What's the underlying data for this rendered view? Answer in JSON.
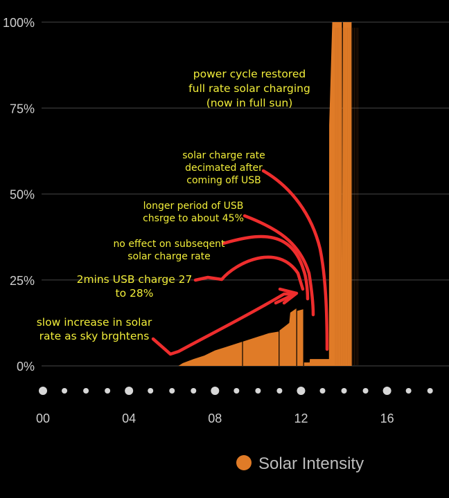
{
  "chart_data": {
    "type": "area",
    "y_ticks": [
      "0%",
      "25%",
      "50%",
      "75%",
      "100%"
    ],
    "ylim": [
      0,
      100
    ],
    "x_ticks": [
      "00",
      "04",
      "08",
      "12",
      "16"
    ],
    "xlim": [
      0,
      18.3
    ],
    "series": [
      {
        "name": "Solar Intensity",
        "color": "#e07b27",
        "points": [
          [
            6.3,
            0
          ],
          [
            6.5,
            0.8
          ],
          [
            7.0,
            2
          ],
          [
            7.5,
            3
          ],
          [
            8.0,
            4.5
          ],
          [
            8.5,
            5.5
          ],
          [
            9.0,
            6.5
          ],
          [
            9.5,
            7.5
          ],
          [
            10.0,
            8.5
          ],
          [
            10.5,
            9.5
          ],
          [
            10.98,
            10
          ],
          [
            11.0,
            10.3
          ],
          [
            11.25,
            11.5
          ],
          [
            11.45,
            12.5
          ],
          [
            11.5,
            15.5
          ],
          [
            11.8,
            16.8
          ],
          [
            11.81,
            16
          ],
          [
            12.12,
            16.5
          ],
          [
            12.13,
            1
          ],
          [
            12.4,
            1
          ],
          [
            12.41,
            2
          ],
          [
            13.3,
            2
          ],
          [
            13.31,
            70
          ],
          [
            13.45,
            100
          ],
          [
            13.9,
            100
          ],
          [
            13.91,
            30
          ],
          [
            13.95,
            100
          ],
          [
            14.35,
            100
          ],
          [
            14.36,
            0
          ]
        ]
      }
    ],
    "legend": {
      "position": "bottom",
      "label": "Solar Intensity"
    },
    "annotations": [
      {
        "lines": [
          "power cycle restored",
          "full rate solar charging",
          "(now in full sun)"
        ]
      },
      {
        "lines": [
          "solar charge rate",
          "decimated after",
          "coming off USB"
        ]
      },
      {
        "lines": [
          "longer period of USB",
          "chsrge to about 45%"
        ]
      },
      {
        "lines": [
          "no effect on subseqent",
          "solar charge rate"
        ]
      },
      {
        "lines": [
          "2mins USB charge 27",
          "to 28%"
        ]
      },
      {
        "lines": [
          "slow increase in solar",
          "rate as sky brghtens"
        ]
      }
    ],
    "colors": {
      "background": "#000000",
      "area": "#e07b27",
      "grid": "#3a3a3a",
      "annotation_text": "#f2ee3a",
      "arrow": "#ee2d2d",
      "dot": "#d7d7d7"
    }
  }
}
